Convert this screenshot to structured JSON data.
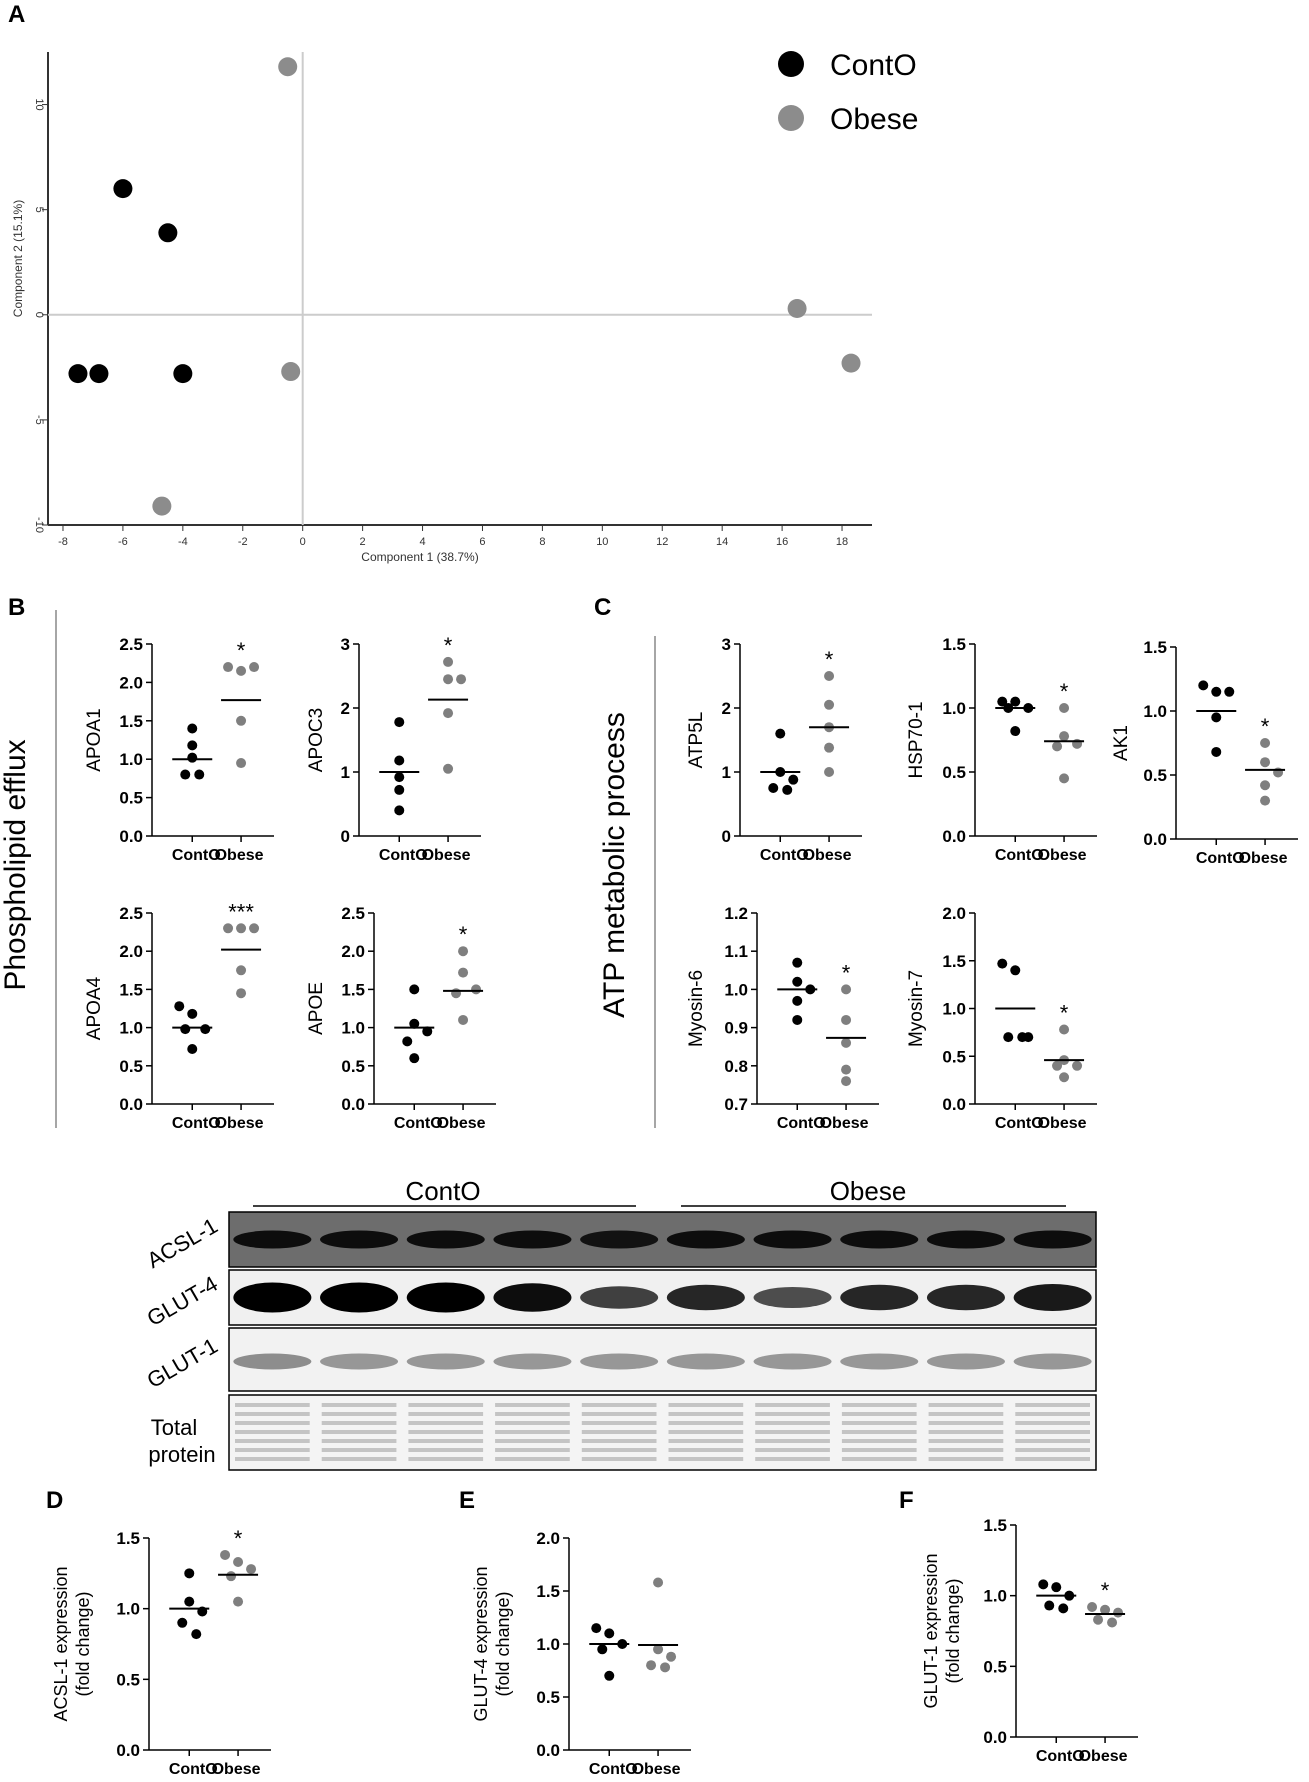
{
  "chart_data": [
    {
      "id": "A",
      "type": "scatter",
      "panel_label": "A",
      "xlabel": "Component 1 (38.7%)",
      "ylabel": "Component 2 (15.1%)",
      "xlim": [
        -8.5,
        19
      ],
      "ylim": [
        -10,
        12.5
      ],
      "xticks": [
        -8,
        -6,
        -4,
        -2,
        0,
        2,
        4,
        6,
        8,
        10,
        12,
        14,
        16,
        18
      ],
      "yticks": [
        -10,
        -5,
        0,
        5,
        10
      ],
      "legend_position": "top-right",
      "series": [
        {
          "name": "ContO",
          "color": "#000000",
          "points": [
            [
              -6,
              6
            ],
            [
              -4.5,
              3.9
            ],
            [
              -7.5,
              -2.8
            ],
            [
              -6.8,
              -2.8
            ],
            [
              -4,
              -2.8
            ]
          ]
        },
        {
          "name": "Obese",
          "color": "#808080",
          "points": [
            [
              -0.5,
              11.8
            ],
            [
              -0.4,
              -2.7
            ],
            [
              -4.7,
              -9.1
            ],
            [
              16.5,
              0.3
            ],
            [
              18.3,
              -2.3
            ]
          ]
        }
      ]
    },
    {
      "id": "APOA1",
      "type": "scatter",
      "ylabel": "APOA1",
      "ylim": [
        0,
        2.5
      ],
      "yticks": [
        "0.0",
        "0.5",
        "1.0",
        "1.5",
        "2.0",
        "2.5"
      ],
      "categories": [
        "ContO",
        "Obese"
      ],
      "significance": "*",
      "groups": [
        {
          "name": "ContO",
          "mean": 1.0,
          "values": [
            1.4,
            1.18,
            1.02,
            0.8,
            0.8
          ]
        },
        {
          "name": "Obese",
          "mean": 1.77,
          "values": [
            2.2,
            2.15,
            2.2,
            1.5,
            0.95
          ]
        }
      ]
    },
    {
      "id": "APOC3",
      "type": "scatter",
      "ylabel": "APOC3",
      "ylim": [
        0,
        3
      ],
      "yticks": [
        "0",
        "1",
        "2",
        "3"
      ],
      "categories": [
        "ContO",
        "Obese"
      ],
      "significance": "*",
      "groups": [
        {
          "name": "ContO",
          "mean": 1.0,
          "values": [
            1.78,
            1.18,
            0.92,
            0.72,
            0.4
          ]
        },
        {
          "name": "Obese",
          "mean": 2.13,
          "values": [
            2.72,
            2.45,
            2.45,
            1.92,
            1.05
          ]
        }
      ]
    },
    {
      "id": "APOA4",
      "type": "scatter",
      "ylabel": "APOA4",
      "ylim": [
        0,
        2.5
      ],
      "yticks": [
        "0.0",
        "0.5",
        "1.0",
        "1.5",
        "2.0",
        "2.5"
      ],
      "categories": [
        "ContO",
        "Obese"
      ],
      "significance": "***",
      "groups": [
        {
          "name": "ContO",
          "mean": 1.0,
          "values": [
            1.28,
            1.18,
            0.98,
            0.98,
            0.72
          ]
        },
        {
          "name": "Obese",
          "mean": 2.02,
          "values": [
            2.3,
            2.3,
            2.3,
            1.75,
            1.45
          ]
        }
      ]
    },
    {
      "id": "APOE",
      "type": "scatter",
      "ylabel": "APOE",
      "ylim": [
        0,
        2.5
      ],
      "yticks": [
        "0.0",
        "0.5",
        "1.0",
        "1.5",
        "2.0",
        "2.5"
      ],
      "categories": [
        "ContO",
        "Obese"
      ],
      "significance": "*",
      "groups": [
        {
          "name": "ContO",
          "mean": 1.0,
          "values": [
            1.5,
            1.05,
            0.95,
            0.82,
            0.6
          ]
        },
        {
          "name": "Obese",
          "mean": 1.48,
          "values": [
            2.0,
            1.72,
            1.5,
            1.45,
            1.1
          ]
        }
      ]
    },
    {
      "id": "ATP5L",
      "type": "scatter",
      "ylabel": "ATP5L",
      "ylim": [
        0,
        3
      ],
      "yticks": [
        "0",
        "1",
        "2",
        "3"
      ],
      "categories": [
        "ContO",
        "Obese"
      ],
      "significance": "*",
      "groups": [
        {
          "name": "ContO",
          "mean": 1.0,
          "values": [
            1.6,
            1.0,
            0.88,
            0.75,
            0.72
          ]
        },
        {
          "name": "Obese",
          "mean": 1.7,
          "values": [
            2.5,
            2.05,
            1.7,
            1.38,
            1.0
          ]
        }
      ]
    },
    {
      "id": "HSP70-1",
      "type": "scatter",
      "ylabel": "HSP70-1",
      "ylim": [
        0,
        1.5
      ],
      "yticks": [
        "0.0",
        "0.5",
        "1.0",
        "1.5"
      ],
      "categories": [
        "ContO",
        "Obese"
      ],
      "significance": "*",
      "groups": [
        {
          "name": "ContO",
          "mean": 1.0,
          "values": [
            1.05,
            1.05,
            1.0,
            1.0,
            0.82
          ]
        },
        {
          "name": "Obese",
          "mean": 0.74,
          "values": [
            1.0,
            0.78,
            0.72,
            0.7,
            0.45
          ]
        }
      ]
    },
    {
      "id": "AK1",
      "type": "scatter",
      "ylabel": "AK1",
      "ylim": [
        0,
        1.5
      ],
      "yticks": [
        "0.0",
        "0.5",
        "1.0",
        "1.5"
      ],
      "categories": [
        "ContO",
        "Obese"
      ],
      "significance": "*",
      "groups": [
        {
          "name": "ContO",
          "mean": 1.0,
          "values": [
            1.2,
            1.15,
            1.15,
            0.95,
            0.68
          ]
        },
        {
          "name": "Obese",
          "mean": 0.54,
          "values": [
            0.75,
            0.6,
            0.52,
            0.42,
            0.3
          ]
        }
      ]
    },
    {
      "id": "Myosin-6",
      "type": "scatter",
      "ylabel": "Myosin-6",
      "ylim": [
        0.7,
        1.2
      ],
      "yticks": [
        "0.7",
        "0.8",
        "0.9",
        "1.0",
        "1.1",
        "1.2"
      ],
      "categories": [
        "ContO",
        "Obese"
      ],
      "significance": "*",
      "groups": [
        {
          "name": "ContO",
          "mean": 1.0,
          "values": [
            1.07,
            1.02,
            1.0,
            0.97,
            0.92
          ]
        },
        {
          "name": "Obese",
          "mean": 0.873,
          "values": [
            1.0,
            0.92,
            0.86,
            0.79,
            0.76
          ]
        }
      ]
    },
    {
      "id": "Myosin-7",
      "type": "scatter",
      "ylabel": "Myosin-7",
      "ylim": [
        0,
        2
      ],
      "yticks": [
        "0.0",
        "0.5",
        "1.0",
        "1.5",
        "2.0"
      ],
      "categories": [
        "ContO",
        "Obese"
      ],
      "significance": "*",
      "groups": [
        {
          "name": "ContO",
          "mean": 1.0,
          "values": [
            1.47,
            1.4,
            0.7,
            0.7,
            0.7
          ]
        },
        {
          "name": "Obese",
          "mean": 0.46,
          "values": [
            0.78,
            0.46,
            0.4,
            0.4,
            0.28
          ]
        }
      ]
    },
    {
      "id": "D",
      "type": "scatter",
      "panel_label": "D",
      "ylabel": "ACSL-1 expression",
      "ylabel2": "(fold change)",
      "ylim": [
        0,
        1.5
      ],
      "yticks": [
        "0.0",
        "0.5",
        "1.0",
        "1.5"
      ],
      "categories": [
        "ContO",
        "Obese"
      ],
      "significance": "*",
      "groups": [
        {
          "name": "ContO",
          "mean": 1.0,
          "values": [
            1.25,
            1.05,
            0.98,
            0.9,
            0.82
          ]
        },
        {
          "name": "Obese",
          "mean": 1.24,
          "values": [
            1.38,
            1.33,
            1.28,
            1.23,
            1.05
          ]
        }
      ]
    },
    {
      "id": "E",
      "type": "scatter",
      "panel_label": "E",
      "ylabel": "GLUT-4 expression",
      "ylabel2": "(fold change)",
      "ylim": [
        0,
        2
      ],
      "yticks": [
        "0.0",
        "0.5",
        "1.0",
        "1.5",
        "2.0"
      ],
      "categories": [
        "ContO",
        "Obese"
      ],
      "significance": "",
      "groups": [
        {
          "name": "ContO",
          "mean": 1.0,
          "values": [
            1.15,
            1.1,
            1.0,
            0.95,
            0.7
          ]
        },
        {
          "name": "Obese",
          "mean": 0.99,
          "values": [
            1.58,
            0.95,
            0.88,
            0.8,
            0.78
          ]
        }
      ]
    },
    {
      "id": "F",
      "type": "scatter",
      "panel_label": "F",
      "ylabel": "GLUT-1 expression",
      "ylabel2": "(fold change)",
      "ylim": [
        0,
        1.5
      ],
      "yticks": [
        "0.0",
        "0.5",
        "1.0",
        "1.5"
      ],
      "categories": [
        "ContO",
        "Obese"
      ],
      "significance": "*",
      "groups": [
        {
          "name": "ContO",
          "mean": 1.0,
          "values": [
            1.08,
            1.06,
            1.0,
            0.93,
            0.91
          ]
        },
        {
          "name": "Obese",
          "mean": 0.87,
          "values": [
            0.92,
            0.9,
            0.88,
            0.83,
            0.81
          ]
        }
      ]
    }
  ],
  "panel_b": {
    "label": "B",
    "side_label": "Phospholipid efflux"
  },
  "panel_c": {
    "label": "C",
    "side_label": "ATP metabolic process"
  },
  "western_blot": {
    "groups": [
      "ContO",
      "Obese"
    ],
    "rows": [
      {
        "label": "ACSL-1",
        "band_intensity": [
          0.95,
          0.95,
          0.95,
          0.95,
          0.93,
          0.95,
          0.95,
          0.95,
          0.95,
          0.95
        ]
      },
      {
        "label": "GLUT-4",
        "band_intensity": [
          1.0,
          1.0,
          1.0,
          0.95,
          0.75,
          0.85,
          0.7,
          0.85,
          0.85,
          0.9
        ]
      },
      {
        "label": "GLUT-1",
        "band_intensity": [
          0.55,
          0.5,
          0.5,
          0.5,
          0.5,
          0.5,
          0.5,
          0.5,
          0.5,
          0.5
        ]
      }
    ],
    "total_protein_label_line1": "Total",
    "total_protein_label_line2": "protein"
  },
  "colors": {
    "conto": "#000000",
    "obese": "#7f7f7f",
    "pca_obese": "#8c8c8c",
    "axis_gray": "#cccccc"
  }
}
